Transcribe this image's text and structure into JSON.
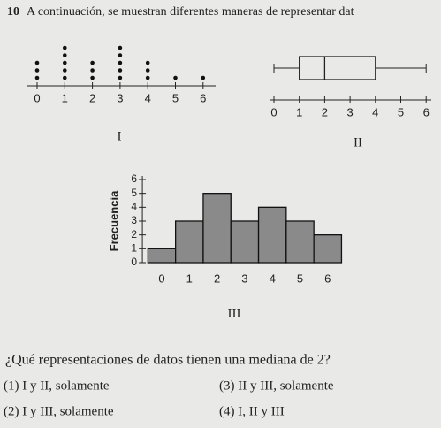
{
  "question": {
    "number": "10",
    "intro": "A continuación, se muestran diferentes maneras de representar dat",
    "prompt": "¿Qué representaciones de datos tienen una mediana de 2?",
    "options": [
      "(1) I y II, solamente",
      "(3) II y III, solamente",
      "(2) I y III, solamente",
      "(4) I, II y III"
    ]
  },
  "figures": [
    {
      "type": "dot",
      "label": "I",
      "x": [
        0,
        1,
        2,
        3,
        4,
        5,
        6
      ],
      "values": [
        3,
        5,
        3,
        5,
        3,
        1,
        1
      ],
      "xticks": [
        0,
        1,
        2,
        3,
        4,
        5,
        6
      ]
    },
    {
      "type": "box",
      "label": "II",
      "min": 0,
      "q1": 1,
      "median": 2,
      "q3": 4,
      "max": 6,
      "xticks": [
        0,
        1,
        2,
        3,
        4,
        5,
        6
      ]
    },
    {
      "type": "histogram",
      "label": "III",
      "ylabel": "Frecuencia",
      "bins": [
        -0.5,
        0.5,
        1.5,
        2.5,
        3.5,
        4.5,
        5.5,
        6.5
      ],
      "values": [
        1,
        3,
        5,
        3,
        4,
        3,
        2
      ],
      "color": "#8a8a8a",
      "xticks": [
        0,
        1,
        2,
        3,
        4,
        5,
        6
      ],
      "ylim": [
        0,
        6
      ],
      "yticks": [
        0,
        1,
        2,
        3,
        4,
        5,
        6
      ]
    }
  ]
}
